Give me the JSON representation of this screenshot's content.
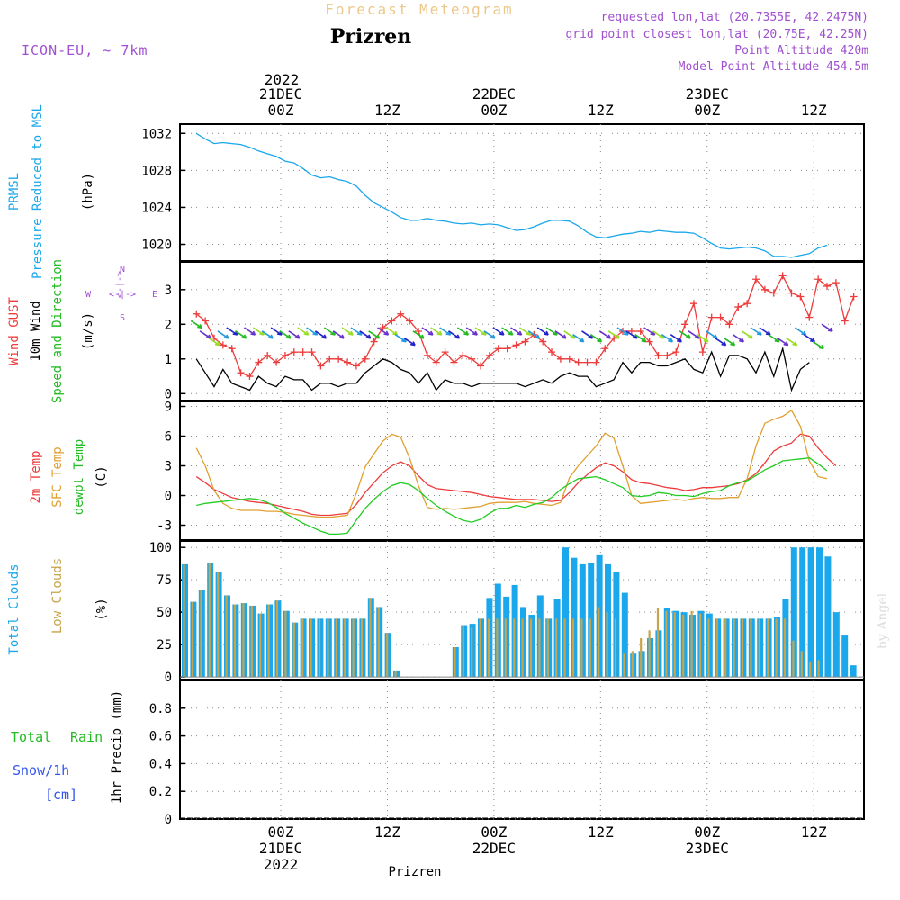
{
  "header": {
    "model": "ICON-EU, ~ 7km",
    "title_top": "Forecast Meteogram",
    "location": "Prizren",
    "requested": "requested lon,lat (20.7355E, 42.2475N)",
    "grid": "grid point closest lon,lat (20.75E, 42.25N)",
    "altitude": "Point Altitude 420m",
    "model_altitude": "Model Point Altitude 454.5m",
    "footer_location": "Prizren",
    "watermark": "by Angel"
  },
  "time_axis": {
    "top_year": "2022",
    "labels": [
      {
        "t": 0,
        "l1": "21DEC",
        "l2": "00Z"
      },
      {
        "t": 12,
        "l1": "",
        "l2": "12Z"
      },
      {
        "t": 24,
        "l1": "22DEC",
        "l2": "00Z"
      },
      {
        "t": 36,
        "l1": "",
        "l2": "12Z"
      },
      {
        "t": 48,
        "l1": "23DEC",
        "l2": "00Z"
      },
      {
        "t": 60,
        "l1": "",
        "l2": "12Z"
      }
    ],
    "bottom": [
      {
        "t": 0,
        "l1": "00Z",
        "l2": "21DEC",
        "l3": "2022"
      },
      {
        "t": 12,
        "l1": "12Z",
        "l2": "",
        "l3": ""
      },
      {
        "t": 24,
        "l1": "00Z",
        "l2": "22DEC",
        "l3": ""
      },
      {
        "t": 36,
        "l1": "12Z",
        "l2": "",
        "l3": ""
      },
      {
        "t": 48,
        "l1": "00Z",
        "l2": "23DEC",
        "l3": ""
      },
      {
        "t": 60,
        "l1": "12Z",
        "l2": "",
        "l3": ""
      }
    ]
  },
  "panels": {
    "pressure": {
      "label1": "PRMSL",
      "label2": "Pressure Reduced to MSL",
      "unit": "(hPa)"
    },
    "wind": {
      "label1": "Wind GUST",
      "label2": "10m Wind",
      "label3": "Speed and Direction",
      "unit": "(m/s)",
      "compass": {
        "n": "N",
        "s": "S",
        "w": "W",
        "e": "E",
        "arrow": "<-|->"
      }
    },
    "temp": {
      "label1": "2m Temp",
      "label2": "SFC Temp",
      "label3": "dewpt Temp",
      "unit": "(C)"
    },
    "clouds": {
      "label1": "Total Clouds",
      "label2": "Low Clouds",
      "unit": "(%)"
    },
    "precip": {
      "label_rain1": "Total",
      "label_rain2": "Rain",
      "label_snow1": "Snow/1h",
      "label_snow2": "[cm]",
      "unit": "1hr Precip (mm)"
    }
  },
  "colors": {
    "pressure": "#1aa7ec",
    "gust": "#ee3b3b",
    "wind": "#000000",
    "temp2m": "#ee3b3b",
    "sfc": "#e0a030",
    "dewpt": "#22cc22",
    "total_clouds": "#1aa7ec",
    "low_clouds": "#c8a44a",
    "rain": "#22bb22",
    "snow": "#3355ee",
    "purple": "#a050d0"
  },
  "chart_data": [
    {
      "type": "line",
      "title": "PRMSL Pressure Reduced to MSL",
      "ylabel": "(hPa)",
      "ylim": [
        1018.2,
        1033
      ],
      "yticks": [
        1020,
        1024,
        1028,
        1032
      ],
      "x_start": -9.5,
      "x_step": 1,
      "series": [
        {
          "name": "PRMSL",
          "values": [
            1032.0,
            1031.4,
            1030.9,
            1031.0,
            1030.9,
            1030.8,
            1030.5,
            1030.1,
            1029.8,
            1029.5,
            1029.0,
            1028.8,
            1028.2,
            1027.5,
            1027.2,
            1027.3,
            1027.0,
            1026.8,
            1026.3,
            1025.3,
            1024.5,
            1024.0,
            1023.5,
            1022.9,
            1022.6,
            1022.6,
            1022.8,
            1022.6,
            1022.5,
            1022.3,
            1022.2,
            1022.3,
            1022.1,
            1022.2,
            1022.1,
            1021.8,
            1021.5,
            1021.6,
            1021.9,
            1022.3,
            1022.6,
            1022.6,
            1022.5,
            1022.0,
            1021.3,
            1020.8,
            1020.7,
            1020.9,
            1021.1,
            1021.2,
            1021.4,
            1021.3,
            1021.5,
            1021.4,
            1021.3,
            1021.3,
            1021.2,
            1020.7,
            1020.1,
            1019.6,
            1019.5,
            1019.6,
            1019.7,
            1019.6,
            1019.3,
            1018.7,
            1018.7,
            1018.6,
            1018.8,
            1019.0,
            1019.6,
            1019.9
          ]
        }
      ]
    },
    {
      "type": "line",
      "title": "Wind GUST / 10m Wind Speed and Direction",
      "ylabel": "(m/s)",
      "ylim": [
        -0.2,
        3.8
      ],
      "yticks": [
        0,
        1,
        2,
        3
      ],
      "x_start": -9.5,
      "x_step": 1,
      "series": [
        {
          "name": "Wind GUST",
          "values": [
            2.3,
            2.1,
            1.6,
            1.4,
            1.3,
            0.6,
            0.5,
            0.9,
            1.1,
            0.9,
            1.1,
            1.2,
            1.2,
            1.2,
            0.8,
            1.0,
            1.0,
            0.9,
            0.8,
            1.0,
            1.5,
            1.9,
            2.1,
            2.3,
            2.1,
            1.8,
            1.1,
            0.9,
            1.2,
            0.9,
            1.1,
            1.0,
            0.8,
            1.1,
            1.3,
            1.3,
            1.4,
            1.5,
            1.7,
            1.5,
            1.2,
            1.0,
            1.0,
            0.9,
            0.9,
            0.9,
            1.3,
            1.6,
            1.8,
            1.8,
            1.8,
            1.5,
            1.1,
            1.1,
            1.2,
            2.0,
            2.6,
            1.2,
            2.2,
            2.2,
            2.0,
            2.5,
            2.6,
            3.3,
            3.0,
            2.9,
            3.4,
            2.9,
            2.8,
            2.2,
            3.3,
            3.1,
            3.2,
            2.1,
            2.8
          ]
        },
        {
          "name": "10m Wind",
          "values": [
            1.0,
            0.6,
            0.2,
            0.7,
            0.3,
            0.2,
            0.1,
            0.5,
            0.3,
            0.2,
            0.5,
            0.4,
            0.4,
            0.1,
            0.3,
            0.3,
            0.2,
            0.3,
            0.3,
            0.6,
            0.8,
            1.0,
            0.9,
            0.7,
            0.6,
            0.3,
            0.6,
            0.1,
            0.4,
            0.3,
            0.3,
            0.2,
            0.3,
            0.3,
            0.3,
            0.3,
            0.3,
            0.2,
            0.3,
            0.4,
            0.3,
            0.5,
            0.6,
            0.5,
            0.5,
            0.2,
            0.3,
            0.4,
            0.9,
            0.6,
            0.9,
            0.9,
            0.8,
            0.8,
            0.9,
            1.0,
            0.7,
            0.6,
            1.2,
            0.5,
            1.1,
            1.1,
            1.0,
            0.6,
            1.2,
            0.5,
            1.3,
            0.1,
            0.7,
            0.9
          ]
        },
        {
          "name": "Wind direction",
          "values": [
            2.0,
            1.7,
            1.5,
            1.7,
            1.8,
            1.7,
            1.8,
            1.8,
            1.7,
            1.8,
            1.7,
            1.7,
            1.8,
            1.8,
            1.7,
            1.8,
            1.7,
            1.8,
            1.8,
            1.7,
            1.7,
            1.8,
            1.8,
            1.6,
            1.5,
            1.7,
            1.8,
            1.8,
            1.8,
            1.7,
            1.8,
            1.8,
            1.8,
            1.7,
            1.8,
            1.8,
            1.8,
            1.8,
            1.7,
            1.8,
            1.8,
            1.7,
            1.7,
            1.6,
            1.7,
            1.6,
            1.7,
            1.7,
            1.8,
            1.7,
            1.6,
            1.8,
            1.7,
            1.6,
            1.6,
            1.7,
            1.7,
            1.6,
            1.7,
            1.5,
            1.5,
            1.6,
            1.7,
            1.8,
            1.8,
            1.6,
            1.5,
            1.5,
            1.8,
            1.6,
            1.4,
            1.9
          ]
        }
      ]
    },
    {
      "type": "line",
      "title": "2m Temp / SFC Temp / dewpt Temp",
      "ylabel": "(C)",
      "ylim": [
        -4.5,
        9.5
      ],
      "yticks": [
        -3,
        0,
        3,
        6,
        9
      ],
      "x_start": -9.5,
      "x_step": 1,
      "series": [
        {
          "name": "2m Temp",
          "values": [
            1.9,
            1.3,
            0.6,
            0.2,
            -0.2,
            -0.4,
            -0.6,
            -0.7,
            -0.8,
            -1.0,
            -1.2,
            -1.4,
            -1.6,
            -1.9,
            -2.0,
            -2.0,
            -1.9,
            -1.8,
            -0.9,
            0.3,
            1.3,
            2.3,
            3.0,
            3.4,
            3.0,
            2.0,
            1.1,
            0.7,
            0.6,
            0.5,
            0.4,
            0.3,
            0.1,
            -0.1,
            -0.2,
            -0.3,
            -0.4,
            -0.4,
            -0.4,
            -0.5,
            -0.6,
            -0.5,
            0.3,
            1.3,
            2.1,
            2.8,
            3.3,
            3.0,
            2.4,
            1.6,
            1.3,
            1.2,
            1.0,
            0.8,
            0.7,
            0.5,
            0.6,
            0.8,
            0.8,
            0.9,
            1.0,
            1.2,
            1.6,
            2.2,
            3.3,
            4.5,
            5.0,
            5.3,
            6.2,
            6.0,
            4.8,
            3.8,
            3.0
          ]
        },
        {
          "name": "SFC Temp",
          "values": [
            4.8,
            3.0,
            0.5,
            -0.8,
            -1.3,
            -1.5,
            -1.5,
            -1.5,
            -1.6,
            -1.6,
            -1.7,
            -1.9,
            -2.0,
            -2.1,
            -2.2,
            -2.2,
            -2.1,
            -2.0,
            0.2,
            2.9,
            4.2,
            5.5,
            6.2,
            5.9,
            3.8,
            1.0,
            -1.2,
            -1.4,
            -1.3,
            -1.4,
            -1.3,
            -1.2,
            -1.1,
            -0.8,
            -0.7,
            -0.7,
            -0.7,
            -0.6,
            -0.8,
            -0.9,
            -1.0,
            -0.7,
            1.8,
            3.0,
            4.0,
            5.0,
            6.3,
            5.8,
            3.0,
            0.0,
            -0.8,
            -0.7,
            -0.6,
            -0.5,
            -0.4,
            -0.5,
            -0.3,
            -0.2,
            -0.3,
            -0.3,
            -0.2,
            -0.2,
            1.7,
            5.0,
            7.3,
            7.7,
            8.0,
            8.6,
            7.0,
            3.5,
            1.9,
            1.7
          ]
        },
        {
          "name": "dewpt Temp",
          "values": [
            -1.0,
            -0.8,
            -0.7,
            -0.6,
            -0.5,
            -0.4,
            -0.3,
            -0.4,
            -0.7,
            -1.2,
            -1.8,
            -2.3,
            -2.8,
            -3.2,
            -3.6,
            -3.9,
            -3.9,
            -3.8,
            -2.5,
            -1.3,
            -0.4,
            0.4,
            1.0,
            1.3,
            1.1,
            0.5,
            -0.3,
            -1.0,
            -1.6,
            -2.1,
            -2.5,
            -2.7,
            -2.4,
            -1.8,
            -1.3,
            -1.3,
            -1.0,
            -1.2,
            -0.9,
            -0.7,
            -0.2,
            0.6,
            1.2,
            1.7,
            1.8,
            1.9,
            1.6,
            1.2,
            0.8,
            0.0,
            -0.1,
            0.0,
            0.3,
            0.2,
            0.0,
            0.0,
            -0.1,
            0.2,
            0.4,
            0.5,
            1.0,
            1.3,
            1.5,
            2.0,
            2.6,
            3.0,
            3.5,
            3.6,
            3.7,
            3.8,
            3.2,
            2.5
          ]
        }
      ]
    },
    {
      "type": "bar",
      "title": "Total Clouds / Low Clouds",
      "ylabel": "(%)",
      "ylim": [
        -2,
        105
      ],
      "yticks": [
        0,
        25,
        50,
        75,
        100
      ],
      "x_start": -9.5,
      "x_step": 1,
      "series": [
        {
          "name": "Total Clouds",
          "values": [
            87,
            58,
            67,
            88,
            81,
            63,
            56,
            57,
            55,
            49,
            56,
            59,
            51,
            42,
            45,
            45,
            45,
            45,
            45,
            45,
            45,
            45,
            61,
            54,
            34,
            5,
            0,
            0,
            0,
            0,
            0,
            0,
            23,
            40,
            41,
            45,
            61,
            72,
            62,
            71,
            54,
            48,
            63,
            45,
            60,
            100,
            92,
            87,
            88,
            94,
            87,
            81,
            65,
            18,
            20,
            30,
            36,
            53,
            51,
            50,
            48,
            51,
            49,
            45,
            45,
            45,
            45,
            45,
            45,
            45,
            46,
            60,
            100,
            100,
            100,
            100,
            93,
            50,
            32,
            9,
            1,
            12
          ]
        },
        {
          "name": "Low Clouds",
          "values": [
            87,
            58,
            67,
            88,
            81,
            63,
            56,
            57,
            55,
            49,
            56,
            59,
            51,
            42,
            45,
            45,
            45,
            45,
            45,
            45,
            45,
            45,
            61,
            54,
            34,
            5,
            0,
            0,
            0,
            0,
            0,
            0,
            23,
            40,
            38,
            45,
            45,
            45,
            45,
            45,
            45,
            45,
            45,
            45,
            45,
            45,
            45,
            45,
            45,
            54,
            50,
            45,
            18,
            20,
            30,
            36,
            53,
            51,
            50,
            48,
            51,
            49,
            45,
            45,
            45,
            45,
            45,
            45,
            45,
            45,
            45,
            45,
            28,
            20,
            12,
            13,
            0,
            0,
            0,
            0,
            0,
            12
          ]
        }
      ]
    },
    {
      "type": "bar",
      "title": "Total Rain / Snow/1h",
      "ylabel": "1hr Precip (mm)",
      "ylim": [
        0,
        1
      ],
      "yticks": [
        0,
        0.2,
        0.4,
        0.6,
        0.8
      ],
      "x_start": -9.5,
      "x_step": 1,
      "series": [
        {
          "name": "Total Rain",
          "values": [
            0,
            0,
            0,
            0,
            0,
            0,
            0,
            0,
            0,
            0,
            0,
            0,
            0,
            0,
            0,
            0,
            0,
            0,
            0,
            0,
            0,
            0,
            0,
            0,
            0,
            0,
            0,
            0,
            0,
            0,
            0,
            0,
            0,
            0,
            0,
            0,
            0,
            0,
            0,
            0,
            0,
            0,
            0,
            0,
            0,
            0,
            0,
            0,
            0,
            0,
            0,
            0,
            0,
            0,
            0,
            0,
            0,
            0,
            0,
            0,
            0,
            0,
            0,
            0,
            0,
            0,
            0,
            0,
            0,
            0,
            0,
            0,
            0,
            0,
            0,
            0,
            0,
            0,
            0,
            0
          ]
        }
      ]
    }
  ]
}
